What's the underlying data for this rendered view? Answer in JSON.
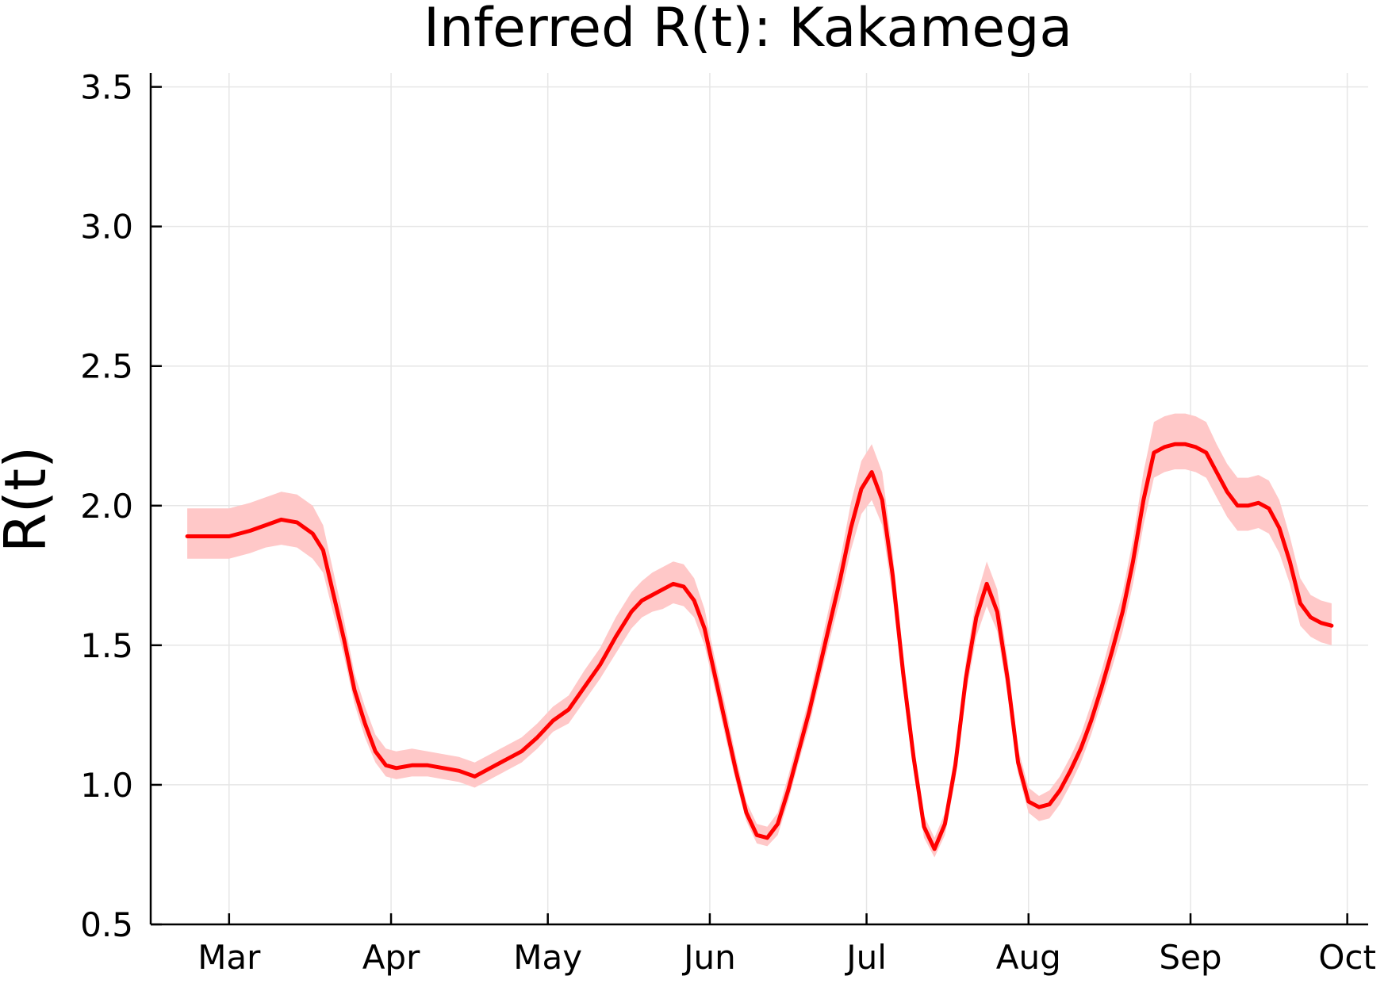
{
  "chart_data": {
    "type": "line",
    "title": "Inferred R(t): Kakamega",
    "xlabel": "",
    "ylabel": "R(t)",
    "x_axis": {
      "type": "date",
      "range": [
        "2020-02-15",
        "2020-10-05"
      ],
      "ticks": [
        {
          "date": "2020-03-01",
          "label": "Mar"
        },
        {
          "date": "2020-04-01",
          "label": "Apr"
        },
        {
          "date": "2020-05-01",
          "label": "May"
        },
        {
          "date": "2020-06-01",
          "label": "Jun"
        },
        {
          "date": "2020-07-01",
          "label": "Jul"
        },
        {
          "date": "2020-08-01",
          "label": "Aug"
        },
        {
          "date": "2020-09-01",
          "label": "Sep"
        },
        {
          "date": "2020-10-01",
          "label": "Oct"
        }
      ]
    },
    "y_axis": {
      "range": [
        0.5,
        3.55
      ],
      "ticks": [
        {
          "value": 0.5,
          "label": "0.5"
        },
        {
          "value": 1.0,
          "label": "1.0"
        },
        {
          "value": 1.5,
          "label": "1.5"
        },
        {
          "value": 2.0,
          "label": "2.0"
        },
        {
          "value": 2.5,
          "label": "2.5"
        },
        {
          "value": 3.0,
          "label": "3.0"
        },
        {
          "value": 3.5,
          "label": "3.5"
        }
      ]
    },
    "grid": true,
    "legend": "none",
    "colors": {
      "line": "#ff0000",
      "band": "#ffc8c8",
      "grid": "#e6e6e6",
      "axis": "#000000"
    },
    "series": [
      {
        "x": [
          "2020-02-22",
          "2020-02-25",
          "2020-03-01",
          "2020-03-05",
          "2020-03-08",
          "2020-03-11",
          "2020-03-14",
          "2020-03-17",
          "2020-03-19",
          "2020-03-21",
          "2020-03-23",
          "2020-03-25",
          "2020-03-27",
          "2020-03-29",
          "2020-03-31",
          "2020-04-02",
          "2020-04-05",
          "2020-04-08",
          "2020-04-11",
          "2020-04-14",
          "2020-04-17",
          "2020-04-20",
          "2020-04-23",
          "2020-04-26",
          "2020-04-29",
          "2020-05-02",
          "2020-05-05",
          "2020-05-08",
          "2020-05-11",
          "2020-05-14",
          "2020-05-17",
          "2020-05-19",
          "2020-05-21",
          "2020-05-23",
          "2020-05-25",
          "2020-05-27",
          "2020-05-29",
          "2020-05-31",
          "2020-06-02",
          "2020-06-04",
          "2020-06-06",
          "2020-06-08",
          "2020-06-10",
          "2020-06-12",
          "2020-06-14",
          "2020-06-16",
          "2020-06-18",
          "2020-06-20",
          "2020-06-22",
          "2020-06-24",
          "2020-06-26",
          "2020-06-28",
          "2020-06-30",
          "2020-07-02",
          "2020-07-04",
          "2020-07-06",
          "2020-07-08",
          "2020-07-10",
          "2020-07-12",
          "2020-07-14",
          "2020-07-16",
          "2020-07-18",
          "2020-07-20",
          "2020-07-22",
          "2020-07-24",
          "2020-07-26",
          "2020-07-28",
          "2020-07-30",
          "2020-08-01",
          "2020-08-03",
          "2020-08-05",
          "2020-08-07",
          "2020-08-09",
          "2020-08-11",
          "2020-08-13",
          "2020-08-15",
          "2020-08-17",
          "2020-08-19",
          "2020-08-21",
          "2020-08-23",
          "2020-08-25",
          "2020-08-27",
          "2020-08-29",
          "2020-08-31",
          "2020-09-02",
          "2020-09-04",
          "2020-09-06",
          "2020-09-08",
          "2020-09-10",
          "2020-09-12",
          "2020-09-14",
          "2020-09-16",
          "2020-09-18",
          "2020-09-20",
          "2020-09-22",
          "2020-09-24",
          "2020-09-26",
          "2020-09-28"
        ],
        "y": [
          1.89,
          1.89,
          1.89,
          1.91,
          1.93,
          1.95,
          1.94,
          1.9,
          1.84,
          1.68,
          1.52,
          1.34,
          1.22,
          1.12,
          1.07,
          1.06,
          1.07,
          1.07,
          1.06,
          1.05,
          1.03,
          1.06,
          1.09,
          1.12,
          1.17,
          1.23,
          1.27,
          1.35,
          1.43,
          1.53,
          1.62,
          1.66,
          1.68,
          1.7,
          1.72,
          1.71,
          1.66,
          1.56,
          1.39,
          1.22,
          1.05,
          0.9,
          0.82,
          0.81,
          0.86,
          0.98,
          1.12,
          1.26,
          1.42,
          1.58,
          1.74,
          1.92,
          2.06,
          2.12,
          2.02,
          1.75,
          1.4,
          1.1,
          0.85,
          0.77,
          0.86,
          1.07,
          1.38,
          1.6,
          1.72,
          1.62,
          1.38,
          1.08,
          0.94,
          0.92,
          0.93,
          0.98,
          1.05,
          1.13,
          1.23,
          1.35,
          1.48,
          1.62,
          1.8,
          2.02,
          2.19,
          2.21,
          2.22,
          2.22,
          2.21,
          2.19,
          2.12,
          2.05,
          2.0,
          2.0,
          2.01,
          1.99,
          1.92,
          1.8,
          1.65,
          1.6,
          1.58,
          1.57
        ],
        "lower": [
          1.81,
          1.81,
          1.81,
          1.83,
          1.85,
          1.86,
          1.85,
          1.81,
          1.76,
          1.61,
          1.46,
          1.29,
          1.17,
          1.08,
          1.03,
          1.02,
          1.03,
          1.03,
          1.02,
          1.01,
          0.99,
          1.02,
          1.05,
          1.08,
          1.13,
          1.19,
          1.22,
          1.3,
          1.38,
          1.47,
          1.56,
          1.6,
          1.62,
          1.63,
          1.65,
          1.64,
          1.6,
          1.5,
          1.34,
          1.17,
          1.01,
          0.87,
          0.79,
          0.78,
          0.82,
          0.94,
          1.08,
          1.21,
          1.37,
          1.52,
          1.67,
          1.84,
          1.97,
          2.02,
          1.93,
          1.67,
          1.34,
          1.05,
          0.81,
          0.74,
          0.82,
          1.02,
          1.32,
          1.53,
          1.64,
          1.55,
          1.32,
          1.04,
          0.9,
          0.87,
          0.88,
          0.93,
          1.0,
          1.08,
          1.18,
          1.3,
          1.42,
          1.55,
          1.72,
          1.93,
          2.1,
          2.12,
          2.13,
          2.13,
          2.12,
          2.1,
          2.03,
          1.96,
          1.91,
          1.91,
          1.92,
          1.9,
          1.83,
          1.72,
          1.57,
          1.53,
          1.51,
          1.5
        ],
        "upper": [
          1.99,
          1.99,
          1.99,
          2.01,
          2.03,
          2.05,
          2.04,
          2.0,
          1.93,
          1.76,
          1.59,
          1.4,
          1.28,
          1.18,
          1.13,
          1.12,
          1.13,
          1.12,
          1.11,
          1.1,
          1.08,
          1.11,
          1.14,
          1.17,
          1.22,
          1.28,
          1.32,
          1.41,
          1.49,
          1.6,
          1.69,
          1.73,
          1.76,
          1.78,
          1.8,
          1.79,
          1.74,
          1.63,
          1.45,
          1.28,
          1.1,
          0.94,
          0.86,
          0.85,
          0.9,
          1.03,
          1.17,
          1.31,
          1.48,
          1.65,
          1.81,
          2.01,
          2.16,
          2.22,
          2.12,
          1.83,
          1.47,
          1.15,
          0.89,
          0.81,
          0.9,
          1.12,
          1.44,
          1.67,
          1.8,
          1.7,
          1.45,
          1.13,
          0.99,
          0.96,
          0.98,
          1.03,
          1.1,
          1.18,
          1.29,
          1.41,
          1.55,
          1.69,
          1.88,
          2.12,
          2.3,
          2.32,
          2.33,
          2.33,
          2.32,
          2.3,
          2.22,
          2.15,
          2.1,
          2.1,
          2.11,
          2.09,
          2.02,
          1.89,
          1.74,
          1.68,
          1.66,
          1.65
        ]
      }
    ]
  }
}
